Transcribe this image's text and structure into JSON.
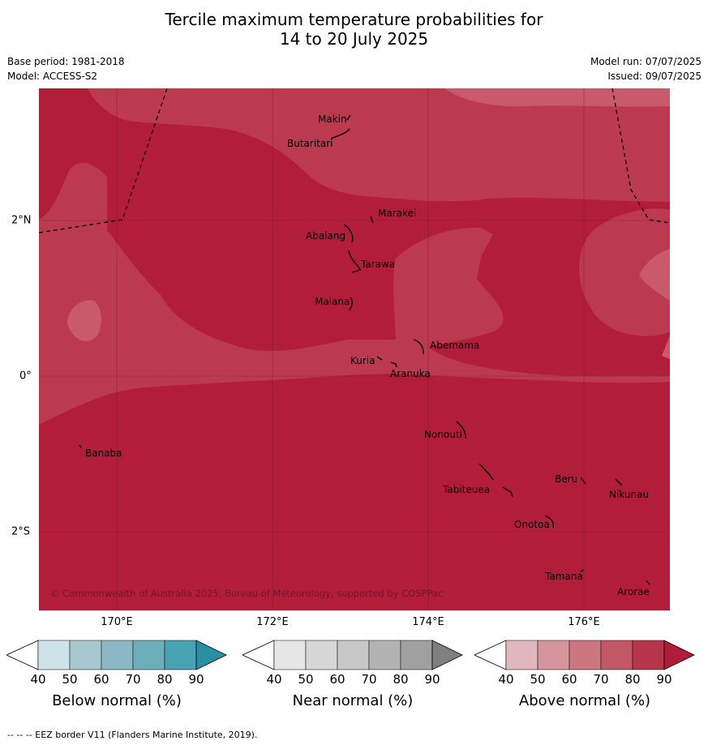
{
  "header": {
    "title_line1": "Tercile maximum temperature probabilities for",
    "title_line2": "14 to 20 July 2025",
    "base_period": "Base period: 1981-2018",
    "model": "Model: ACCESS-S2",
    "model_run": "Model run: 07/07/2025",
    "issued": "Issued: 09/07/2025"
  },
  "map": {
    "lon_labels": [
      "170°E",
      "172°E",
      "174°E",
      "176°E"
    ],
    "lat_labels": [
      "2°N",
      "0°",
      "2°S"
    ],
    "copyright": "© Commonwealth of Australia 2025, Bureau of Meteorology, supported by COSPPac",
    "places": [
      {
        "name": "Makin",
        "lon": 173.0,
        "lat": 3.4
      },
      {
        "name": "Butaritari",
        "lon": 172.8,
        "lat": 3.1
      },
      {
        "name": "Marakei",
        "lon": 173.3,
        "lat": 2.0
      },
      {
        "name": "Abaiang",
        "lon": 173.0,
        "lat": 1.8
      },
      {
        "name": "Tarawa",
        "lon": 173.1,
        "lat": 1.4
      },
      {
        "name": "Maiana",
        "lon": 173.0,
        "lat": 0.9
      },
      {
        "name": "Abemama",
        "lon": 173.9,
        "lat": 0.4
      },
      {
        "name": "Kuria",
        "lon": 173.4,
        "lat": 0.2
      },
      {
        "name": "Aranuka",
        "lon": 173.6,
        "lat": 0.2
      },
      {
        "name": "Banaba",
        "lon": 169.5,
        "lat": -0.9
      },
      {
        "name": "Nonouti",
        "lon": 174.4,
        "lat": -0.7
      },
      {
        "name": "Tabiteuea",
        "lon": 174.9,
        "lat": -1.3
      },
      {
        "name": "Beru",
        "lon": 176.0,
        "lat": -1.3
      },
      {
        "name": "Nikunau",
        "lon": 176.5,
        "lat": -1.4
      },
      {
        "name": "Onotoa",
        "lon": 175.6,
        "lat": -1.8
      },
      {
        "name": "Tamana",
        "lon": 175.9,
        "lat": -2.5
      },
      {
        "name": "Arorae",
        "lon": 176.8,
        "lat": -2.6
      }
    ]
  },
  "legend": {
    "bars": [
      {
        "title": "Below normal (%)",
        "colors": [
          "#cce3ea",
          "#a8c8d0",
          "#8ab7c3",
          "#6daebb",
          "#47a3b1",
          "#2b8ea3"
        ]
      },
      {
        "title": "Near normal (%)",
        "colors": [
          "#e6e6e6",
          "#d6d6d6",
          "#c7c7c7",
          "#b3b3b3",
          "#a0a0a0",
          "#808080"
        ]
      },
      {
        "title": "Above normal (%)",
        "colors": [
          "#e2b6bd",
          "#d6949c",
          "#cb7681",
          "#c25866",
          "#b6354b",
          "#b01c3c"
        ]
      }
    ],
    "ticks": [
      "40",
      "50",
      "60",
      "70",
      "80",
      "90"
    ]
  },
  "footer": {
    "eez_note": "-- -- -- EEZ border V11 (Flanders Marine Institute, 2019)."
  }
}
